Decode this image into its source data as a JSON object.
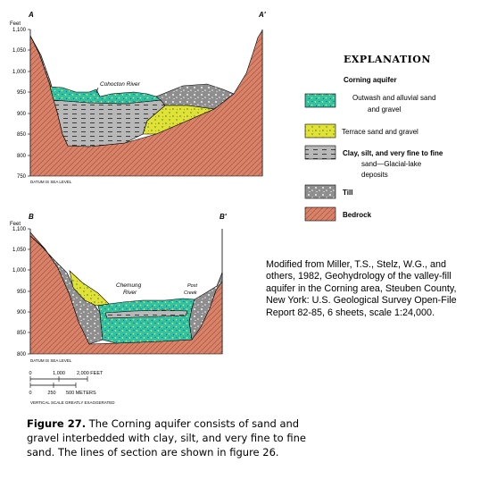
{
  "section_a": {
    "label_left": "A",
    "label_right": "A'",
    "axis_unit": "Feet",
    "ticks": [
      "1,100",
      "1,050",
      "1,000",
      "950",
      "900",
      "850",
      "800",
      "750"
    ],
    "datum": "DATUM IS SEA LEVEL",
    "river": "Cohocton River"
  },
  "section_b": {
    "label_left": "B",
    "label_right": "B'",
    "axis_unit": "Feet",
    "ticks": [
      "1,100",
      "1,050",
      "1,000",
      "950",
      "900",
      "850",
      "800"
    ],
    "datum": "DATUM IS SEA LEVEL",
    "river1_line1": "Chemung",
    "river1_line2": "River",
    "river2_line1": "Post",
    "river2_line2": "Creek"
  },
  "legend": {
    "title": "EXPLANATION",
    "group": "Corning aquifer",
    "items": [
      {
        "line1": "Outwash and alluvial sand",
        "line2": "and gravel",
        "pattern": "outwash"
      },
      {
        "line1": "Terrace sand and gravel",
        "line2": "",
        "pattern": "terrace"
      },
      {
        "line1": "Clay, silt, and very fine to fine",
        "line2": "sand—Glacial-lake",
        "line3": "deposits",
        "pattern": "clay"
      },
      {
        "line1": "Till",
        "line2": "",
        "pattern": "till"
      },
      {
        "line1": "Bedrock",
        "line2": "",
        "pattern": "bedrock"
      }
    ]
  },
  "scale": {
    "feet_ticks": [
      "0",
      "1,000",
      "2,000 FEET"
    ],
    "meter_ticks": [
      "0",
      "250",
      "500 METERS"
    ],
    "note": "VERTICAL SCALE GREATLY EXAGGERATED"
  },
  "credit": {
    "lines": [
      "Modified from Miller, T.S., Stelz, W.G., and",
      "others, 1982, Geohydrology of the valley-fill",
      "aquifer in the Corning area, Steuben County,",
      "New York: U.S. Geological Survey Open-File",
      "Report 82-85, 6 sheets, scale 1:24,000."
    ]
  },
  "caption": {
    "label": "Figure 27.",
    "line1": " The Corning aquifer consists of sand and",
    "line2": "gravel interbedded with clay, silt, and very fine to fine",
    "line3": "sand. The lines of section are shown in figure 26."
  },
  "colors": {
    "bedrock": "#d9826a",
    "outwash": "#2fc0a8",
    "terrace": "#e5e12e",
    "clay": "#b8b8b8",
    "till": "#8e8e8e"
  }
}
